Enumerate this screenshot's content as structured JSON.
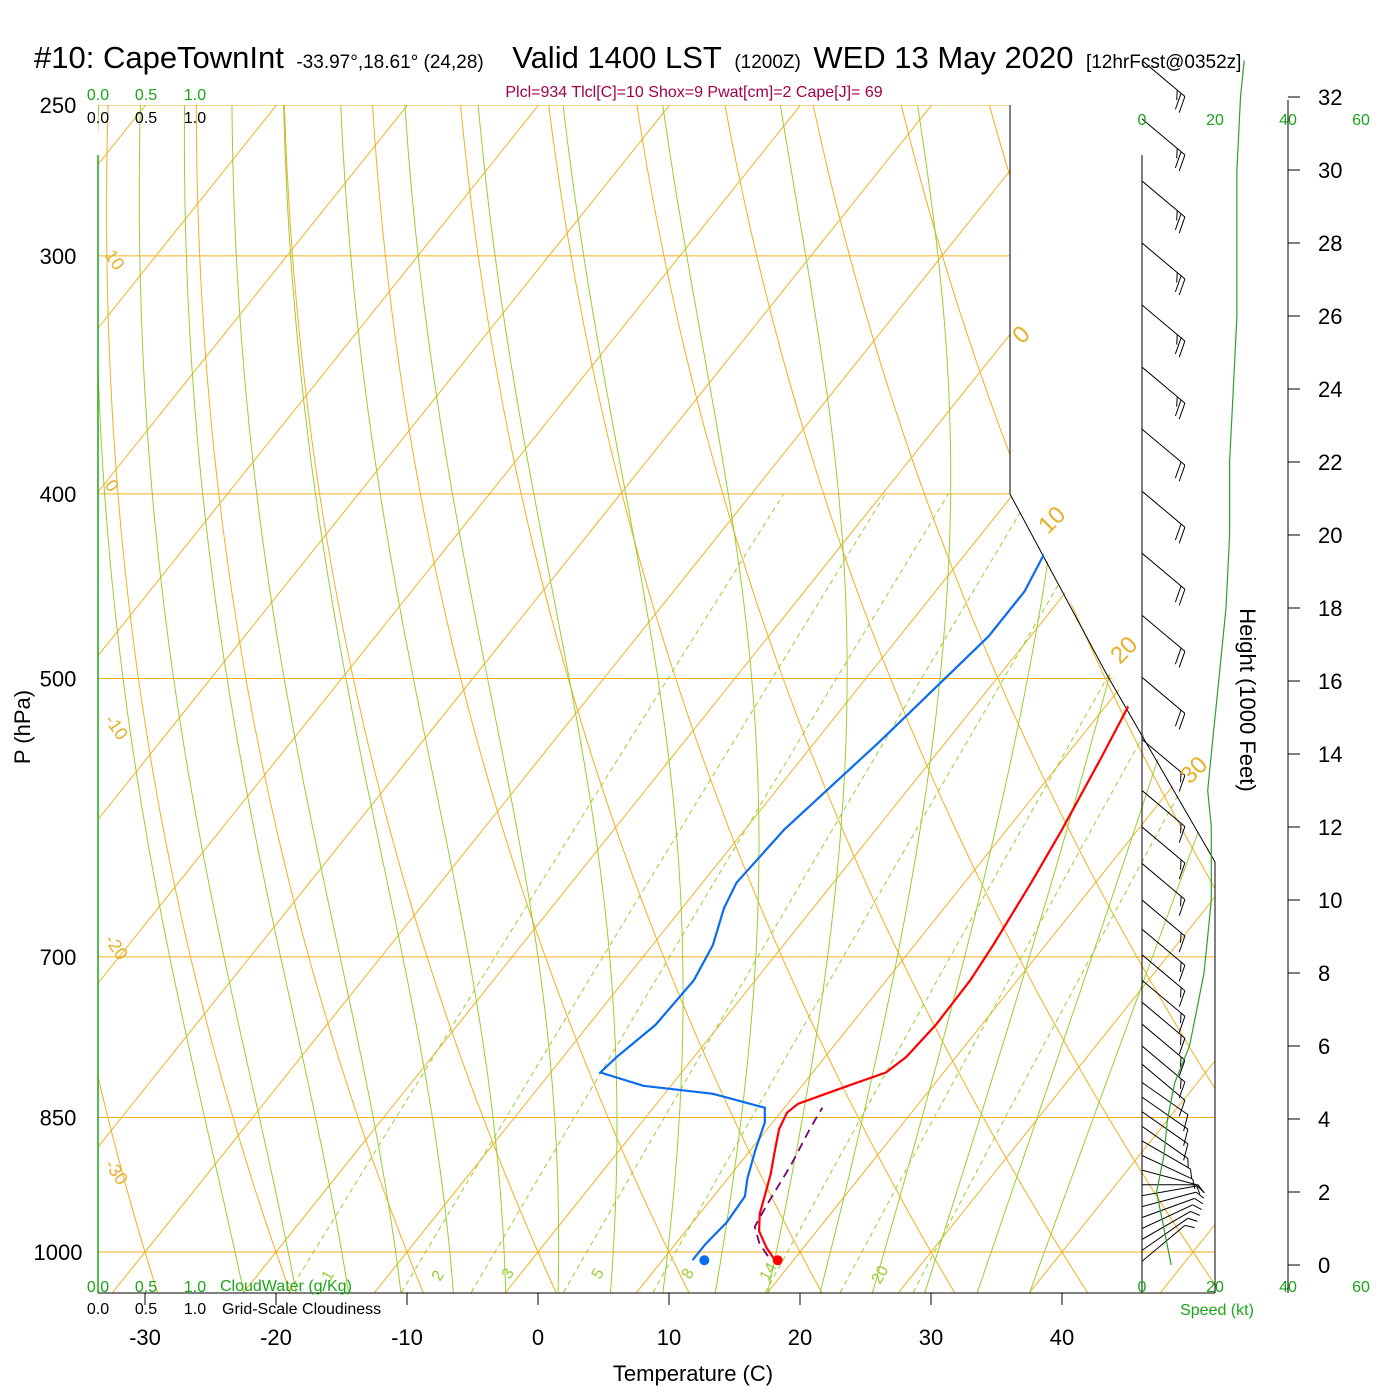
{
  "header": {
    "station": "#10: CapeTownInt",
    "coords": "-33.97°,18.61° (24,28)",
    "valid": "Valid 1400 LST",
    "zulu": "(1200Z)",
    "date": "WED 13 May 2020",
    "forecast": "[12hrFcst@0352z]"
  },
  "stats_line": "Plcl=934 Tlcl[C]=10 Shox=9 Pwat[cm]=2 Cape[J]= 69",
  "colors": {
    "temperature": "#ff0000",
    "dewpoint": "#0a6cf0",
    "parcel": "#7a0070",
    "isotherm": "#f0b020",
    "dry_adiabat": "#f0b020",
    "moist_adiabat": "#9acd32",
    "mixing_ratio": "#9acd32",
    "wind_speed": "#2ca02c",
    "cloud_axis": "#1aa51a"
  },
  "labels": {
    "x_axis_title": "Temperature (C)",
    "y_axis_title": "P (hPa)",
    "height_axis_title": "Height (1000 Feet)",
    "cloud_water": "CloudWater (g/Kg)",
    "cloudiness": "Grid-Scale Cloudiness",
    "speed_axis": "Speed (kt)"
  },
  "chart_data": {
    "type": "line",
    "title": "#10: CapeTownInt Valid 1400 LST (1200Z) WED 13 May 2020",
    "xlabel": "Temperature (C)",
    "ylabel": "P (hPa)",
    "x_ticks": [
      -30,
      -20,
      -10,
      0,
      10,
      20,
      30,
      40
    ],
    "p_ticks": [
      250,
      300,
      400,
      500,
      700,
      850,
      1000
    ],
    "height_ticks_kft": [
      0,
      2,
      4,
      6,
      8,
      10,
      12,
      14,
      16,
      18,
      20,
      22,
      24,
      26,
      28,
      30,
      32
    ],
    "cloud_ticks_top": [
      "0.0",
      "0.5",
      "1.0"
    ],
    "cloud_ticks_bottom": [
      "0.0",
      "0.5",
      "1.0"
    ],
    "speed_ticks_top": [
      0,
      20,
      40,
      60
    ],
    "speed_ticks_bottom": [
      0,
      20,
      40,
      60
    ],
    "isotherm_labels": [
      10,
      0,
      -10,
      -20,
      -30
    ],
    "dry_adiabat_labels": [
      0,
      10,
      20,
      30
    ],
    "mixing_ratio_labels": [
      "1",
      "2",
      "3",
      "5",
      "8",
      "14",
      "20"
    ],
    "surface_temperature": 18.8,
    "surface_dewpoint": 13.2,
    "series": [
      {
        "name": "Temperature",
        "points": [
          [
            18.6,
            1010
          ],
          [
            17.2,
            995
          ],
          [
            15.6,
            975
          ],
          [
            14.6,
            955
          ],
          [
            13.9,
            935
          ],
          [
            13.0,
            910
          ],
          [
            11.9,
            885
          ],
          [
            10.9,
            862
          ],
          [
            10.5,
            845
          ],
          [
            10.8,
            836
          ],
          [
            12.3,
            826
          ],
          [
            14.0,
            815
          ],
          [
            15.6,
            805
          ],
          [
            16.2,
            790
          ],
          [
            16.5,
            760
          ],
          [
            16.4,
            720
          ],
          [
            16.0,
            690
          ],
          [
            15.1,
            640
          ],
          [
            14.2,
            600
          ],
          [
            12.8,
            550
          ],
          [
            11.5,
            510
          ],
          [
            10.0,
            470
          ],
          [
            8.2,
            430
          ],
          [
            6.2,
            395
          ],
          [
            4.8,
            370
          ],
          [
            2.3,
            330
          ],
          [
            0.5,
            300
          ],
          [
            -1.0,
            280
          ],
          [
            -3.0,
            260
          ]
        ]
      },
      {
        "name": "Dewpoint",
        "points": [
          [
            12.3,
            1010
          ],
          [
            12.3,
            990
          ],
          [
            12.6,
            965
          ],
          [
            12.4,
            935
          ],
          [
            11.5,
            915
          ],
          [
            10.4,
            885
          ],
          [
            9.4,
            855
          ],
          [
            8.5,
            840
          ],
          [
            3.7,
            826
          ],
          [
            -2.1,
            818
          ],
          [
            -6.2,
            805
          ],
          [
            -5.9,
            790
          ],
          [
            -4.9,
            760
          ],
          [
            -4.7,
            720
          ],
          [
            -5.4,
            690
          ],
          [
            -6.8,
            660
          ],
          [
            -7.4,
            640
          ],
          [
            -7.0,
            600
          ],
          [
            -5.1,
            540
          ],
          [
            -4.1,
            505
          ],
          [
            -3.2,
            475
          ],
          [
            -3.2,
            450
          ],
          [
            -4.2,
            425
          ],
          [
            -6.0,
            400
          ],
          [
            -7.5,
            380
          ],
          [
            -8.8,
            355
          ],
          [
            -10.4,
            330
          ],
          [
            -10.8,
            310
          ],
          [
            -12.1,
            290
          ],
          [
            -13.0,
            270
          ]
        ]
      },
      {
        "name": "Parcel",
        "points": [
          [
            17.8,
            1005
          ],
          [
            16.4,
            990
          ],
          [
            15.0,
            970
          ],
          [
            14.6,
            945
          ],
          [
            14.0,
            900
          ],
          [
            13.2,
            860
          ],
          [
            12.9,
            840
          ]
        ]
      }
    ],
    "wind_speed_kt": [
      [
        0,
        8
      ],
      [
        1,
        6
      ],
      [
        2,
        4
      ],
      [
        3,
        6
      ],
      [
        4,
        7
      ],
      [
        5,
        9
      ],
      [
        6,
        13
      ],
      [
        7,
        15
      ],
      [
        8,
        17
      ],
      [
        9,
        18
      ],
      [
        10,
        19
      ],
      [
        11,
        19
      ],
      [
        12,
        19
      ],
      [
        13,
        18
      ],
      [
        14,
        19
      ],
      [
        16,
        21
      ],
      [
        18,
        23
      ],
      [
        20,
        24
      ],
      [
        22,
        24
      ],
      [
        24,
        25
      ],
      [
        26,
        26
      ],
      [
        28,
        26
      ],
      [
        30,
        26
      ],
      [
        32,
        27
      ],
      [
        33,
        28
      ]
    ],
    "wind_barbs": [
      {
        "height_kft": 0.1,
        "dir": 230,
        "kt": 8
      },
      {
        "height_kft": 0.4,
        "dir": 235,
        "kt": 8
      },
      {
        "height_kft": 0.7,
        "dir": 240,
        "kt": 8
      },
      {
        "height_kft": 1.0,
        "dir": 245,
        "kt": 7
      },
      {
        "height_kft": 1.3,
        "dir": 250,
        "kt": 6
      },
      {
        "height_kft": 1.6,
        "dir": 255,
        "kt": 5
      },
      {
        "height_kft": 1.9,
        "dir": 260,
        "kt": 5
      },
      {
        "height_kft": 2.2,
        "dir": 270,
        "kt": 5
      },
      {
        "height_kft": 2.6,
        "dir": 285,
        "kt": 6
      },
      {
        "height_kft": 3.0,
        "dir": 295,
        "kt": 7
      },
      {
        "height_kft": 3.4,
        "dir": 300,
        "kt": 8
      },
      {
        "height_kft": 3.8,
        "dir": 305,
        "kt": 9
      },
      {
        "height_kft": 4.2,
        "dir": 305,
        "kt": 10
      },
      {
        "height_kft": 4.6,
        "dir": 305,
        "kt": 11
      },
      {
        "height_kft": 5.0,
        "dir": 305,
        "kt": 12
      },
      {
        "height_kft": 5.5,
        "dir": 310,
        "kt": 14
      },
      {
        "height_kft": 6.0,
        "dir": 310,
        "kt": 15
      },
      {
        "height_kft": 6.6,
        "dir": 310,
        "kt": 16
      },
      {
        "height_kft": 7.2,
        "dir": 310,
        "kt": 17
      },
      {
        "height_kft": 7.8,
        "dir": 310,
        "kt": 18
      },
      {
        "height_kft": 8.5,
        "dir": 310,
        "kt": 18
      },
      {
        "height_kft": 9.2,
        "dir": 310,
        "kt": 19
      },
      {
        "height_kft": 10.0,
        "dir": 310,
        "kt": 19
      },
      {
        "height_kft": 11.0,
        "dir": 310,
        "kt": 19
      },
      {
        "height_kft": 12.0,
        "dir": 310,
        "kt": 19
      },
      {
        "height_kft": 13.0,
        "dir": 310,
        "kt": 18
      },
      {
        "height_kft": 14.4,
        "dir": 310,
        "kt": 19
      },
      {
        "height_kft": 16.1,
        "dir": 310,
        "kt": 20
      },
      {
        "height_kft": 17.8,
        "dir": 310,
        "kt": 22
      },
      {
        "height_kft": 19.5,
        "dir": 310,
        "kt": 24
      },
      {
        "height_kft": 21.2,
        "dir": 310,
        "kt": 24
      },
      {
        "height_kft": 22.9,
        "dir": 310,
        "kt": 24
      },
      {
        "height_kft": 24.6,
        "dir": 310,
        "kt": 25
      },
      {
        "height_kft": 26.3,
        "dir": 310,
        "kt": 26
      },
      {
        "height_kft": 28.0,
        "dir": 310,
        "kt": 26
      },
      {
        "height_kft": 29.7,
        "dir": 310,
        "kt": 26
      },
      {
        "height_kft": 31.4,
        "dir": 310,
        "kt": 27
      },
      {
        "height_kft": 33.0,
        "dir": 310,
        "kt": 28
      }
    ]
  }
}
